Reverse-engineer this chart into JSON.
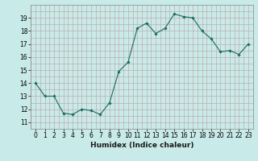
{
  "x": [
    0,
    1,
    2,
    3,
    4,
    5,
    6,
    7,
    8,
    9,
    10,
    11,
    12,
    13,
    14,
    15,
    16,
    17,
    18,
    19,
    20,
    21,
    22,
    23
  ],
  "y": [
    14.0,
    13.0,
    13.0,
    11.7,
    11.6,
    12.0,
    11.9,
    11.6,
    12.5,
    14.9,
    15.6,
    18.2,
    18.6,
    17.8,
    18.2,
    19.3,
    19.1,
    19.0,
    18.0,
    17.4,
    16.4,
    16.5,
    16.2,
    17.0
  ],
  "line_color": "#1a6b5e",
  "marker": "D",
  "marker_size": 1.8,
  "bg_color": "#c8eae8",
  "grid_minor_color": "#c0a0a0",
  "grid_major_color": "#c0a0a0",
  "xlabel": "Humidex (Indice chaleur)",
  "ylim": [
    11,
    20
  ],
  "xlim": [
    -0.5,
    23.5
  ],
  "yticks": [
    11,
    12,
    13,
    14,
    15,
    16,
    17,
    18,
    19
  ],
  "xtick_labels": [
    "0",
    "1",
    "2",
    "3",
    "4",
    "5",
    "6",
    "7",
    "8",
    "9",
    "10",
    "11",
    "12",
    "13",
    "14",
    "15",
    "16",
    "17",
    "18",
    "19",
    "20",
    "21",
    "22",
    "23"
  ],
  "label_fontsize": 6.5,
  "tick_fontsize": 5.5
}
